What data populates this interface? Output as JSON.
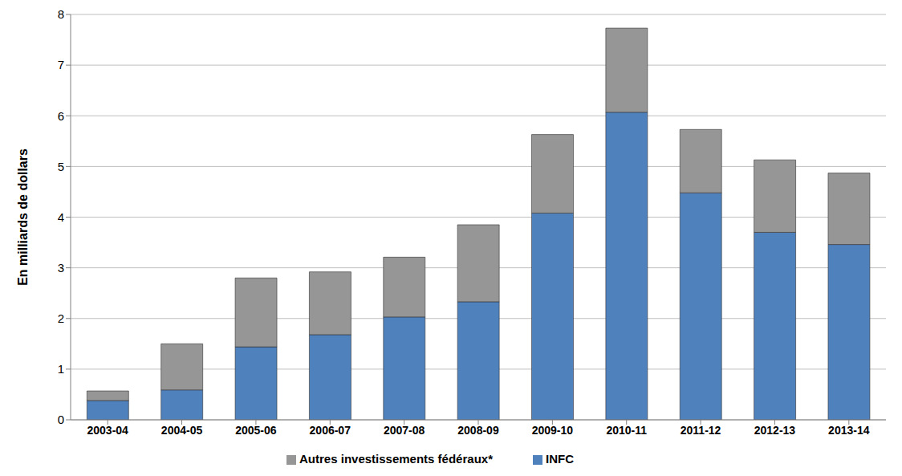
{
  "chart_data": {
    "type": "bar",
    "stacked": true,
    "grid": true,
    "legend": "bottom",
    "y_label": "En milliards de dollars",
    "categories": [
      "2003-04",
      "2004-05",
      "2005-06",
      "2006-07",
      "2007-08",
      "2008-09",
      "2009-10",
      "2010-11",
      "2011-12",
      "2012-13",
      "2013-14"
    ],
    "series": [
      {
        "name": "INFC",
        "color": "#4f81bd",
        "values": [
          0.38,
          0.59,
          1.44,
          1.68,
          2.03,
          2.33,
          4.08,
          6.07,
          4.48,
          3.7,
          3.46
        ]
      },
      {
        "name": "Autres investissements fédéraux*",
        "color": "#969696",
        "values": [
          0.19,
          0.91,
          1.36,
          1.24,
          1.18,
          1.52,
          1.55,
          1.66,
          1.25,
          1.43,
          1.41
        ]
      }
    ],
    "ylim": [
      0,
      8
    ],
    "yticks": [
      0,
      1,
      2,
      3,
      4,
      5,
      6,
      7,
      8
    ]
  }
}
